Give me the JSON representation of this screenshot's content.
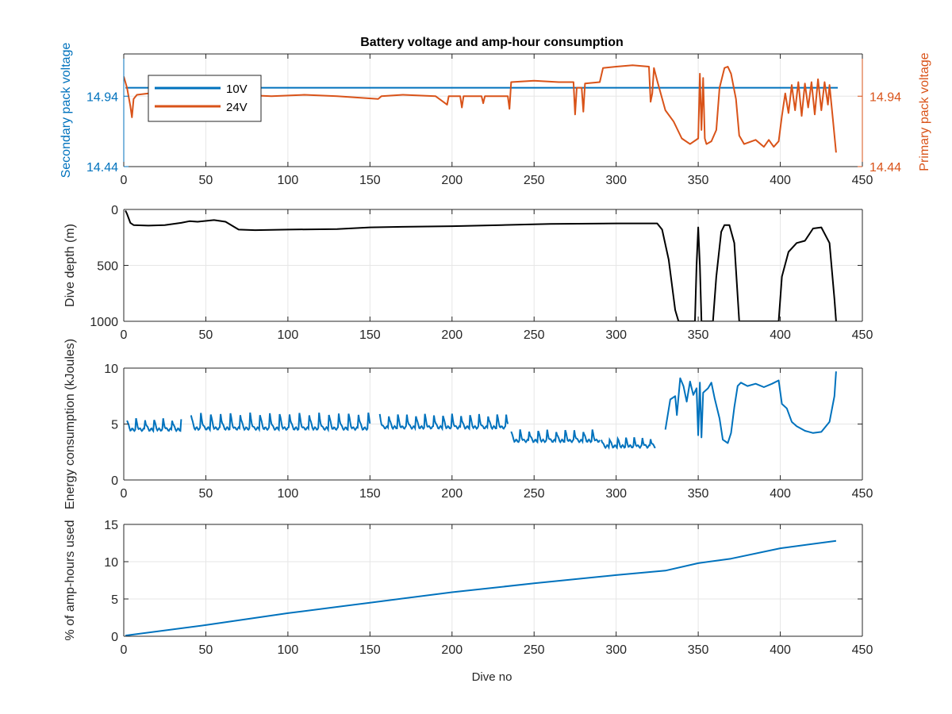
{
  "figure": {
    "title": "Battery voltage and amp-hour consumption",
    "xlabel": "Dive no"
  },
  "colors": {
    "blue": "#0072BD",
    "orange": "#D95319",
    "black": "#000000",
    "grid": "#e6e6e6",
    "axis": "#262626"
  },
  "chart_data": [
    {
      "type": "line",
      "panel": "voltage",
      "xlim": [
        0,
        450
      ],
      "xticks": [
        0,
        50,
        100,
        150,
        200,
        250,
        300,
        350,
        400,
        450
      ],
      "ylabel": "Secondary pack voltage",
      "ylim": [
        14.44,
        15.24
      ],
      "yticks": [
        14.44,
        14.94
      ],
      "ylabel_right": "Primary pack voltage",
      "ylim_right": [
        14.44,
        15.24
      ],
      "yticks_right": [
        14.44,
        14.94
      ],
      "grid": true,
      "legend": {
        "placement": "top-left",
        "entries": [
          "10V",
          "24V"
        ]
      },
      "series": [
        {
          "name": "10V",
          "axis": "left",
          "color": "#0072BD",
          "points": [
            [
              1,
              15.0
            ],
            [
              435,
              15.0
            ]
          ]
        },
        {
          "name": "24V",
          "axis": "right",
          "color": "#D95319",
          "points": [
            [
              0,
              15.08
            ],
            [
              2,
              15.0
            ],
            [
              4,
              14.87
            ],
            [
              5,
              14.79
            ],
            [
              6,
              14.92
            ],
            [
              8,
              14.95
            ],
            [
              15,
              14.96
            ],
            [
              30,
              14.95
            ],
            [
              45,
              14.96
            ],
            [
              60,
              14.94
            ],
            [
              70,
              14.95
            ],
            [
              90,
              14.94
            ],
            [
              110,
              14.95
            ],
            [
              130,
              14.94
            ],
            [
              155,
              14.92
            ],
            [
              157,
              14.94
            ],
            [
              170,
              14.95
            ],
            [
              190,
              14.94
            ],
            [
              197,
              14.88
            ],
            [
              198,
              14.94
            ],
            [
              205,
              14.94
            ],
            [
              206,
              14.86
            ],
            [
              207,
              14.94
            ],
            [
              218,
              14.94
            ],
            [
              219,
              14.89
            ],
            [
              220,
              14.94
            ],
            [
              234,
              14.94
            ],
            [
              235,
              14.85
            ],
            [
              236,
              15.04
            ],
            [
              250,
              15.05
            ],
            [
              265,
              15.04
            ],
            [
              274,
              15.04
            ],
            [
              275,
              14.81
            ],
            [
              276,
              15.0
            ],
            [
              279,
              15.0
            ],
            [
              280,
              14.83
            ],
            [
              281,
              15.03
            ],
            [
              290,
              15.04
            ],
            [
              292,
              15.14
            ],
            [
              300,
              15.15
            ],
            [
              310,
              15.16
            ],
            [
              320,
              15.15
            ],
            [
              321,
              14.9
            ],
            [
              322,
              14.96
            ],
            [
              323,
              15.14
            ],
            [
              325,
              15.05
            ],
            [
              330,
              14.84
            ],
            [
              335,
              14.76
            ],
            [
              340,
              14.64
            ],
            [
              345,
              14.6
            ],
            [
              350,
              14.64
            ],
            [
              351,
              15.1
            ],
            [
              352,
              14.7
            ],
            [
              353,
              15.07
            ],
            [
              354,
              14.64
            ],
            [
              355,
              14.6
            ],
            [
              358,
              14.62
            ],
            [
              361,
              14.7
            ],
            [
              363,
              15.0
            ],
            [
              366,
              15.14
            ],
            [
              368,
              15.15
            ],
            [
              370,
              15.1
            ],
            [
              373,
              14.92
            ],
            [
              375,
              14.66
            ],
            [
              378,
              14.6
            ],
            [
              385,
              14.63
            ],
            [
              390,
              14.58
            ],
            [
              393,
              14.63
            ],
            [
              396,
              14.58
            ],
            [
              399,
              14.62
            ],
            [
              401,
              14.8
            ],
            [
              403,
              14.96
            ],
            [
              405,
              14.82
            ],
            [
              407,
              15.02
            ],
            [
              409,
              14.84
            ],
            [
              411,
              15.04
            ],
            [
              413,
              14.8
            ],
            [
              415,
              15.03
            ],
            [
              417,
              14.86
            ],
            [
              419,
              15.04
            ],
            [
              421,
              14.81
            ],
            [
              423,
              15.06
            ],
            [
              425,
              14.84
            ],
            [
              427,
              15.04
            ],
            [
              429,
              14.88
            ],
            [
              430,
              15.02
            ],
            [
              432,
              14.78
            ],
            [
              434,
              14.54
            ]
          ]
        }
      ]
    },
    {
      "type": "line",
      "panel": "depth",
      "xlim": [
        0,
        450
      ],
      "xticks": [
        0,
        50,
        100,
        150,
        200,
        250,
        300,
        350,
        400,
        450
      ],
      "ylabel": "Dive depth (m)",
      "ylim": [
        0,
        1000
      ],
      "yticks": [
        0,
        500,
        1000
      ],
      "y_reversed": true,
      "grid": true,
      "series": [
        {
          "color": "#000000",
          "points": [
            [
              1,
              10
            ],
            [
              2,
              40
            ],
            [
              4,
              120
            ],
            [
              6,
              140
            ],
            [
              15,
              145
            ],
            [
              25,
              140
            ],
            [
              35,
              120
            ],
            [
              40,
              105
            ],
            [
              45,
              110
            ],
            [
              55,
              95
            ],
            [
              62,
              110
            ],
            [
              70,
              180
            ],
            [
              80,
              185
            ],
            [
              100,
              180
            ],
            [
              130,
              175
            ],
            [
              150,
              160
            ],
            [
              170,
              155
            ],
            [
              200,
              150
            ],
            [
              230,
              140
            ],
            [
              260,
              130
            ],
            [
              300,
              125
            ],
            [
              325,
              125
            ],
            [
              328,
              180
            ],
            [
              332,
              450
            ],
            [
              336,
              900
            ],
            [
              338,
              1000
            ],
            [
              348,
              1000
            ],
            [
              349,
              500
            ],
            [
              350,
              160
            ],
            [
              351,
              500
            ],
            [
              352,
              1000
            ],
            [
              359,
              1000
            ],
            [
              361,
              600
            ],
            [
              364,
              200
            ],
            [
              366,
              140
            ],
            [
              369,
              140
            ],
            [
              372,
              300
            ],
            [
              375,
              1000
            ],
            [
              399,
              1000
            ],
            [
              401,
              600
            ],
            [
              405,
              380
            ],
            [
              410,
              300
            ],
            [
              415,
              280
            ],
            [
              420,
              170
            ],
            [
              425,
              160
            ],
            [
              430,
              300
            ],
            [
              433,
              800
            ],
            [
              434,
              1000
            ]
          ]
        }
      ]
    },
    {
      "type": "line",
      "panel": "energy",
      "xlim": [
        0,
        450
      ],
      "xticks": [
        0,
        50,
        100,
        150,
        200,
        250,
        300,
        350,
        400,
        450
      ],
      "ylabel": "Energy consumption (kJoules)",
      "ylim": [
        0,
        10
      ],
      "yticks": [
        0,
        5,
        10
      ],
      "grid": true,
      "series": [
        {
          "color": "#0072BD",
          "segments": [
            {
              "x_start": 2,
              "x_end": 35,
              "base": 4.5,
              "amp": 0.9,
              "period": 5.5
            },
            {
              "x_start": 41,
              "x_end": 150,
              "base": 4.6,
              "amp": 1.3,
              "period": 6
            },
            {
              "x_start": 156,
              "x_end": 234,
              "base": 4.7,
              "amp": 1.1,
              "period": 5.5
            },
            {
              "x_start": 236,
              "x_end": 290,
              "base": 3.5,
              "amp": 0.9,
              "period": 5.5
            },
            {
              "x_start": 291,
              "x_end": 324,
              "base": 3.0,
              "amp": 0.7,
              "period": 5
            }
          ],
          "points": [
            [
              330,
              4.5
            ],
            [
              333,
              7.2
            ],
            [
              336,
              7.5
            ],
            [
              337,
              5.8
            ],
            [
              339,
              9.1
            ],
            [
              341,
              8.4
            ],
            [
              343,
              7.0
            ],
            [
              345,
              8.8
            ],
            [
              347,
              7.6
            ],
            [
              349,
              8.2
            ],
            [
              350,
              4.0
            ],
            [
              351,
              8.7
            ],
            [
              352,
              3.8
            ],
            [
              353,
              7.8
            ],
            [
              356,
              8.2
            ],
            [
              358,
              8.7
            ],
            [
              360,
              7.3
            ],
            [
              363,
              5.5
            ],
            [
              365,
              3.6
            ],
            [
              368,
              3.3
            ],
            [
              370,
              4.2
            ],
            [
              372,
              6.5
            ],
            [
              374,
              8.4
            ],
            [
              376,
              8.7
            ],
            [
              380,
              8.4
            ],
            [
              385,
              8.6
            ],
            [
              390,
              8.3
            ],
            [
              395,
              8.6
            ],
            [
              399,
              8.9
            ],
            [
              401,
              6.8
            ],
            [
              404,
              6.4
            ],
            [
              407,
              5.2
            ],
            [
              410,
              4.8
            ],
            [
              415,
              4.4
            ],
            [
              420,
              4.2
            ],
            [
              425,
              4.3
            ],
            [
              430,
              5.2
            ],
            [
              433,
              7.5
            ],
            [
              434,
              9.7
            ]
          ]
        }
      ]
    },
    {
      "type": "line",
      "panel": "amphours",
      "xlim": [
        0,
        450
      ],
      "xticks": [
        0,
        50,
        100,
        150,
        200,
        250,
        300,
        350,
        400,
        450
      ],
      "ylabel": "% of amp-hours used",
      "ylim": [
        0,
        15
      ],
      "yticks": [
        0,
        5,
        10,
        15
      ],
      "grid": true,
      "series": [
        {
          "color": "#0072BD",
          "points": [
            [
              1,
              0.1
            ],
            [
              50,
              1.5
            ],
            [
              100,
              3.1
            ],
            [
              150,
              4.5
            ],
            [
              200,
              5.9
            ],
            [
              250,
              7.1
            ],
            [
              300,
              8.2
            ],
            [
              330,
              8.8
            ],
            [
              350,
              9.8
            ],
            [
              370,
              10.4
            ],
            [
              400,
              11.8
            ],
            [
              434,
              12.8
            ]
          ]
        }
      ]
    }
  ]
}
